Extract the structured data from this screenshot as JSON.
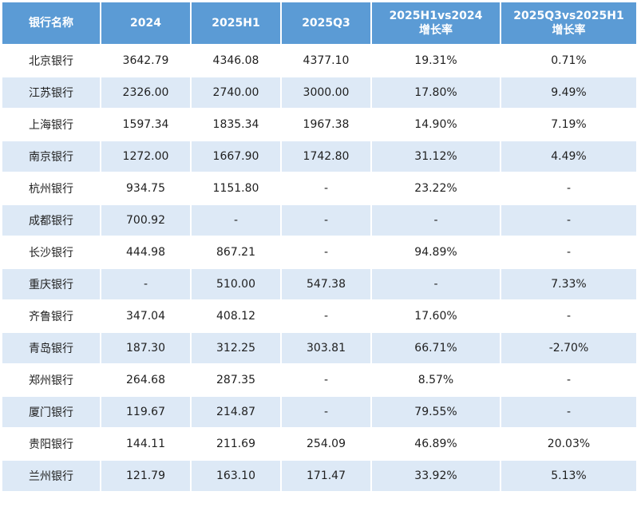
{
  "table": {
    "header": [
      [
        "银行名称"
      ],
      [
        "2024"
      ],
      [
        "2025H1"
      ],
      [
        "2025Q3"
      ],
      [
        "2025H1vs2024",
        "增长率"
      ],
      [
        "2025Q3vs2025H1",
        "增长率"
      ]
    ],
    "rows": [
      [
        "北京银行",
        "3642.79",
        "4346.08",
        "4377.10",
        "19.31%",
        "0.71%"
      ],
      [
        "江苏银行",
        "2326.00",
        "2740.00",
        "3000.00",
        "17.80%",
        "9.49%"
      ],
      [
        "上海银行",
        "1597.34",
        "1835.34",
        "1967.38",
        "14.90%",
        "7.19%"
      ],
      [
        "南京银行",
        "1272.00",
        "1667.90",
        "1742.80",
        "31.12%",
        "4.49%"
      ],
      [
        "杭州银行",
        "934.75",
        "1151.80",
        "-",
        "23.22%",
        "-"
      ],
      [
        "成都银行",
        "700.92",
        "-",
        "-",
        "-",
        "-"
      ],
      [
        "长沙银行",
        "444.98",
        "867.21",
        "-",
        "94.89%",
        "-"
      ],
      [
        "重庆银行",
        "-",
        "510.00",
        "547.38",
        "-",
        "7.33%"
      ],
      [
        "齐鲁银行",
        "347.04",
        "408.12",
        "-",
        "17.60%",
        "-"
      ],
      [
        "青岛银行",
        "187.30",
        "312.25",
        "303.81",
        "66.71%",
        "-2.70%"
      ],
      [
        "郑州银行",
        "264.68",
        "287.35",
        "-",
        "8.57%",
        "-"
      ],
      [
        "厦门银行",
        "119.67",
        "214.87",
        "-",
        "79.55%",
        "-"
      ],
      [
        "贵阳银行",
        "144.11",
        "211.69",
        "254.09",
        "46.89%",
        "20.03%"
      ],
      [
        "兰州银行",
        "121.79",
        "163.10",
        "171.47",
        "33.92%",
        "5.13%"
      ]
    ]
  }
}
